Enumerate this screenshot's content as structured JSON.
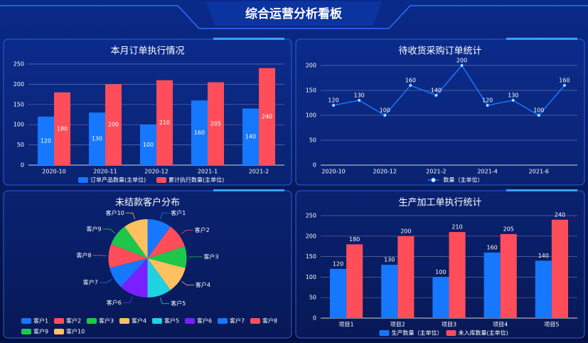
{
  "title": "综合运营分析看板",
  "chart_data": [
    {
      "type": "bar",
      "title": "本月订单执行情况",
      "categories": [
        "2020-10",
        "2020-11",
        "2020-12",
        "2021-1",
        "2021-2"
      ],
      "series": [
        {
          "name": "订单产品数量(主单位)",
          "color": "#1677ff",
          "values": [
            120,
            130,
            100,
            160,
            140
          ]
        },
        {
          "name": "累计执行数量(主单位)",
          "color": "#ff4d5a",
          "values": [
            180,
            200,
            210,
            205,
            240
          ]
        }
      ],
      "ylim": [
        0,
        250
      ],
      "yticks": [
        0,
        50,
        100,
        150,
        200,
        250
      ],
      "grid": true,
      "label_position": "inside"
    },
    {
      "type": "line",
      "title": "待收货采购订单统计",
      "categories": [
        "2020-10",
        null,
        "2020-12",
        null,
        "2021-2",
        null,
        "2021-4",
        null,
        "2021-6",
        null
      ],
      "series": [
        {
          "name": "数量（主单位）",
          "color": "#1677ff",
          "values": [
            120,
            130,
            100,
            160,
            140,
            200,
            120,
            130,
            100,
            160
          ]
        }
      ],
      "ylim": [
        0,
        200
      ],
      "yticks": [
        0,
        50,
        100,
        150,
        200
      ],
      "grid": true
    },
    {
      "type": "pie",
      "title": "未结款客户分布",
      "categories": [
        "客户1",
        "客户2",
        "客户3",
        "客户4",
        "客户5",
        "客户6",
        "客户7",
        "客户8",
        "客户9",
        "客户10"
      ],
      "values": [
        10,
        10,
        9,
        11,
        10,
        12,
        9,
        10,
        9,
        10
      ],
      "colors": [
        "#1677ff",
        "#ff4d5a",
        "#1ec74a",
        "#ffc160",
        "#1fd2e0",
        "#7a1fff",
        "#1677ff",
        "#ff4d5a",
        "#1ec74a",
        "#ffc160"
      ]
    },
    {
      "type": "bar",
      "title": "生产加工单执行统计",
      "categories": [
        "项目1",
        "项目2",
        "项目3",
        "项目4",
        "项目5"
      ],
      "series": [
        {
          "name": "生产数量（主单位）",
          "color": "#1677ff",
          "values": [
            120,
            130,
            100,
            160,
            140
          ]
        },
        {
          "name": "未入库数量(主单位)",
          "color": "#ff4d5a",
          "values": [
            180,
            200,
            210,
            205,
            240
          ]
        }
      ],
      "ylim": [
        0,
        250
      ],
      "yticks": [
        0,
        50,
        100,
        150,
        200,
        250
      ],
      "grid": true,
      "label_position": "top"
    }
  ]
}
